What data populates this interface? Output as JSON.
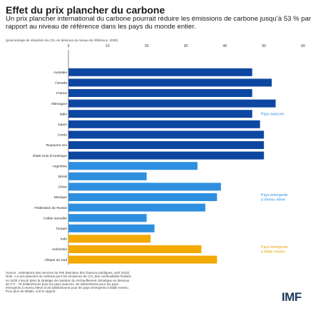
{
  "title": "Effet du prix plancher du carbone",
  "subtitle": "Un prix plancher international du carbone pourrait réduire les émissions de carbone jusqu’à 53 % par rapport au niveau de référence dans les pays du monde entier.",
  "unit_note": "(pourcentage de réduction du CO₂ en dessous du niveau de référence, 2030)",
  "colors": {
    "advanced": "#0d47a1",
    "emerging_high": "#2e8fe0",
    "emerging_low": "#f2a900",
    "label_blue": "#2e8fe0",
    "label_gold": "#e6a100"
  },
  "chart_data": {
    "type": "bar",
    "orientation": "horizontal",
    "xlim": [
      0,
      60
    ],
    "xticks": [
      0,
      10,
      20,
      30,
      40,
      50,
      60
    ],
    "grid": false,
    "categories": [
      "Australie",
      "Canada",
      "France",
      "Allemagne",
      "Italie",
      "Japon",
      "Corée",
      "Royaume-Uni",
      "États-Unis d’Amérique",
      "Argentine",
      "Brésil",
      "Chine",
      "Mexique",
      "Fédération de Russie",
      "Arabie saoudite",
      "Turquie",
      "Inde",
      "Indonésie",
      "Afrique du Sud"
    ],
    "values": [
      47,
      52,
      47,
      53,
      47,
      49,
      50,
      50,
      50,
      33,
      20,
      39,
      38,
      35,
      20,
      22,
      21,
      34,
      38
    ],
    "groups": [
      "advanced",
      "advanced",
      "advanced",
      "advanced",
      "advanced",
      "advanced",
      "advanced",
      "advanced",
      "advanced",
      "emerging_high",
      "emerging_high",
      "emerging_high",
      "emerging_high",
      "emerging_high",
      "emerging_high",
      "emerging_high",
      "emerging_low",
      "emerging_low",
      "emerging_low"
    ],
    "group_labels": [
      {
        "group": "advanced",
        "lines": [
          "Pays avancés"
        ]
      },
      {
        "group": "emerging_high",
        "lines": [
          "Pays émergents",
          "à revenu élevé"
        ]
      },
      {
        "group": "emerging_low",
        "lines": [
          "Pays émergents",
          "à faible revenu"
        ]
      }
    ]
  },
  "source_lines": [
    "Source : estimations des services du FMI (Moniteur des finances publiques, avril 2022).",
    "Note : Le prix plancher du carbone pour les émissions de CO₂ des combustibles fossiles",
    "en 2030 s’inscrit dans la stratégie de maintien du réchauffement climatique en dessous",
    "de 2°C : 75 dollars/tonne pour les pays avancés, 50 dollars/tonne pour les pays",
    "émergents à revenu élevé et 25 dollars/tonne pour les pays émergents à faible revenu.",
    "Pour plus de détails, voir le rapport"
  ],
  "logo": "IMF"
}
